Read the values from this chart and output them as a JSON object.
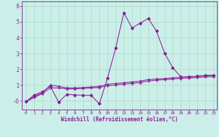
{
  "xlabel": "Windchill (Refroidissement éolien,°C)",
  "bg_color": "#cceee8",
  "line_color": "#882299",
  "grid_color": "#aaddcc",
  "spine_color": "#884499",
  "xlim": [
    -0.5,
    23.4
  ],
  "ylim": [
    -0.55,
    6.3
  ],
  "xtick_values": [
    0,
    1,
    2,
    3,
    4,
    5,
    6,
    7,
    8,
    9,
    10,
    11,
    12,
    13,
    14,
    15,
    16,
    17,
    18,
    19,
    20,
    21,
    22,
    23
  ],
  "xtick_labels": [
    "0",
    "1",
    "2",
    "3",
    "4",
    "5",
    "6",
    "7",
    "8",
    "9",
    "10",
    "11",
    "12",
    "13",
    "14",
    "15",
    "16",
    "17",
    "18",
    "19",
    "20",
    "21",
    "22",
    "23"
  ],
  "ytick_values": [
    0,
    1,
    2,
    3,
    4,
    5,
    6
  ],
  "ytick_labels": [
    "-0",
    "1",
    "2",
    "3",
    "4",
    "5",
    "6"
  ],
  "series1_x": [
    0,
    1,
    2,
    3,
    4,
    5,
    6,
    7,
    8,
    9,
    10,
    11,
    12,
    13,
    14,
    15,
    16,
    17,
    18,
    19,
    20,
    21,
    22,
    23
  ],
  "series1_y": [
    -0.05,
    0.38,
    0.58,
    0.92,
    -0.08,
    0.42,
    0.38,
    0.35,
    0.35,
    -0.18,
    1.45,
    3.35,
    5.58,
    4.62,
    4.92,
    5.22,
    4.42,
    3.02,
    2.1,
    1.52,
    1.52,
    1.57,
    1.62,
    1.62
  ],
  "series2_x": [
    0,
    1,
    2,
    3,
    4,
    5,
    6,
    7,
    8,
    9,
    10,
    11,
    12,
    13,
    14,
    15,
    16,
    17,
    18,
    19,
    20,
    21,
    22,
    23
  ],
  "series2_y": [
    -0.05,
    0.28,
    0.52,
    1.0,
    0.92,
    0.82,
    0.82,
    0.85,
    0.88,
    0.92,
    1.05,
    1.1,
    1.15,
    1.2,
    1.25,
    1.35,
    1.38,
    1.42,
    1.46,
    1.5,
    1.53,
    1.56,
    1.59,
    1.62
  ],
  "series3_x": [
    0,
    1,
    2,
    3,
    4,
    5,
    6,
    7,
    8,
    9,
    10,
    11,
    12,
    13,
    14,
    15,
    16,
    17,
    18,
    19,
    20,
    21,
    22,
    23
  ],
  "series3_y": [
    -0.05,
    0.22,
    0.46,
    0.82,
    0.82,
    0.76,
    0.76,
    0.79,
    0.82,
    0.85,
    0.96,
    1.01,
    1.06,
    1.11,
    1.16,
    1.26,
    1.31,
    1.35,
    1.39,
    1.42,
    1.45,
    1.48,
    1.51,
    1.54
  ]
}
